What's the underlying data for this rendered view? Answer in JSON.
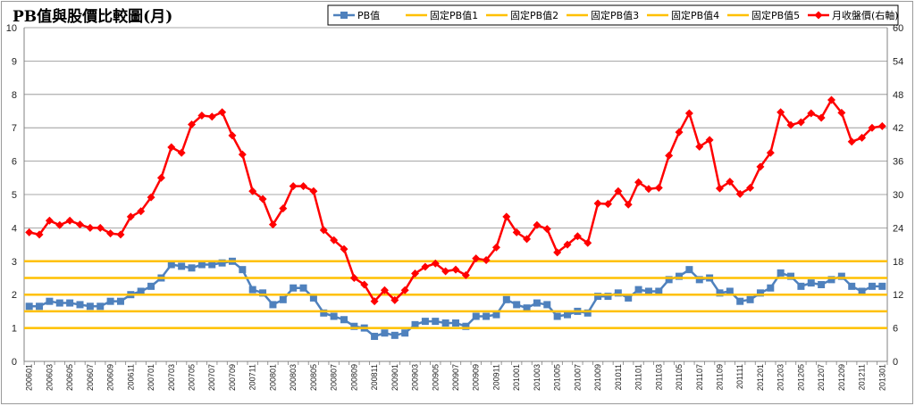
{
  "chart_data": {
    "type": "line",
    "title": "PB值與股價比較圖(月)",
    "legend_position": "top-right",
    "y_left_lim": [
      0,
      10
    ],
    "y_left_ticks": [
      "0",
      "1",
      "2",
      "3",
      "4",
      "5",
      "6",
      "7",
      "8",
      "9",
      "10"
    ],
    "y_right_lim": [
      0,
      60
    ],
    "y_right_ticks": [
      "0",
      "6",
      "12",
      "18",
      "24",
      "30",
      "36",
      "42",
      "48",
      "54",
      "60"
    ],
    "x_tick_labels": [
      "200601",
      "200603",
      "200605",
      "200607",
      "200609",
      "200611",
      "200701",
      "200703",
      "200705",
      "200707",
      "200709",
      "200711",
      "200801",
      "200803",
      "200805",
      "200807",
      "200809",
      "200811",
      "200901",
      "200903",
      "200905",
      "200907",
      "200909",
      "200911",
      "201001",
      "201003",
      "201005",
      "201007",
      "201009",
      "201011",
      "201101",
      "201103",
      "201105",
      "201107",
      "201109",
      "201111",
      "201201",
      "201203",
      "201205",
      "201207",
      "201209",
      "201211",
      "201301"
    ],
    "x": [
      "200601",
      "200602",
      "200603",
      "200604",
      "200605",
      "200606",
      "200607",
      "200608",
      "200609",
      "200610",
      "200611",
      "200612",
      "200701",
      "200702",
      "200703",
      "200704",
      "200705",
      "200706",
      "200707",
      "200708",
      "200709",
      "200710",
      "200711",
      "200712",
      "200801",
      "200802",
      "200803",
      "200804",
      "200805",
      "200806",
      "200807",
      "200808",
      "200809",
      "200810",
      "200811",
      "200812",
      "200901",
      "200902",
      "200903",
      "200904",
      "200905",
      "200906",
      "200907",
      "200908",
      "200909",
      "200910",
      "200911",
      "200912",
      "201001",
      "201002",
      "201003",
      "201004",
      "201005",
      "201006",
      "201007",
      "201008",
      "201009",
      "201010",
      "201011",
      "201012",
      "201101",
      "201102",
      "201103",
      "201104",
      "201105",
      "201106",
      "201107",
      "201108",
      "201109",
      "201110",
      "201111",
      "201112",
      "201201",
      "201202",
      "201203",
      "201204",
      "201205",
      "201206",
      "201207",
      "201208",
      "201209",
      "201210",
      "201211",
      "201212",
      "201301"
    ],
    "series": [
      {
        "name": "PB值",
        "axis": "left",
        "color": "#4f81bd",
        "marker": "square",
        "values": [
          1.65,
          1.65,
          1.8,
          1.75,
          1.75,
          1.7,
          1.65,
          1.65,
          1.8,
          1.8,
          2.0,
          2.1,
          2.25,
          2.5,
          2.9,
          2.85,
          2.8,
          2.9,
          2.9,
          2.95,
          3.0,
          2.75,
          2.15,
          2.05,
          1.7,
          1.85,
          2.2,
          2.2,
          1.9,
          1.45,
          1.35,
          1.25,
          1.05,
          1.0,
          0.75,
          0.85,
          0.78,
          0.85,
          1.1,
          1.2,
          1.2,
          1.15,
          1.15,
          1.05,
          1.35,
          1.35,
          1.4,
          1.85,
          1.7,
          1.6,
          1.75,
          1.7,
          1.35,
          1.4,
          1.5,
          1.45,
          1.95,
          1.95,
          2.05,
          1.9,
          2.15,
          2.1,
          2.1,
          2.45,
          2.55,
          2.75,
          2.45,
          2.5,
          2.05,
          2.1,
          1.8,
          1.85,
          2.05,
          2.2,
          2.65,
          2.55,
          2.25,
          2.35,
          2.3,
          2.45,
          2.55,
          2.25,
          2.1,
          2.25,
          2.25
        ]
      },
      {
        "name": "固定PB值1",
        "axis": "left",
        "color": "#ffc000",
        "constant": 1.0
      },
      {
        "name": "固定PB值2",
        "axis": "left",
        "color": "#ffc000",
        "constant": 1.5
      },
      {
        "name": "固定PB值3",
        "axis": "left",
        "color": "#ffc000",
        "constant": 2.0
      },
      {
        "name": "固定PB值4",
        "axis": "left",
        "color": "#ffc000",
        "constant": 2.5
      },
      {
        "name": "固定PB值5",
        "axis": "left",
        "color": "#ffc000",
        "constant": 3.0
      },
      {
        "name": "月收盤價(右軸)",
        "axis": "right",
        "color": "#ff0000",
        "marker": "diamond",
        "values": [
          23.2,
          22.8,
          25.3,
          24.5,
          25.3,
          24.6,
          24.0,
          24.0,
          23.0,
          22.8,
          26.0,
          27.0,
          29.5,
          33.0,
          38.5,
          37.5,
          42.6,
          44.2,
          44.0,
          44.8,
          40.6,
          37.2,
          30.6,
          29.2,
          24.6,
          27.5,
          31.5,
          31.5,
          30.6,
          23.6,
          21.8,
          20.2,
          15.0,
          13.8,
          10.8,
          12.8,
          11.0,
          12.8,
          15.8,
          17.0,
          17.6,
          16.2,
          16.5,
          15.5,
          18.5,
          18.2,
          20.5,
          26.0,
          23.2,
          22.0,
          24.5,
          23.8,
          19.6,
          21.0,
          22.5,
          21.3,
          28.4,
          28.3,
          30.6,
          28.2,
          32.2,
          31.0,
          31.2,
          37.0,
          41.2,
          44.6,
          38.6,
          39.8,
          31.1,
          32.3,
          30.1,
          31.2,
          35.0,
          37.5,
          44.8,
          42.5,
          43.0,
          44.6,
          43.8,
          47.0,
          44.7,
          39.5,
          40.2,
          42.0,
          42.3
        ]
      }
    ]
  }
}
